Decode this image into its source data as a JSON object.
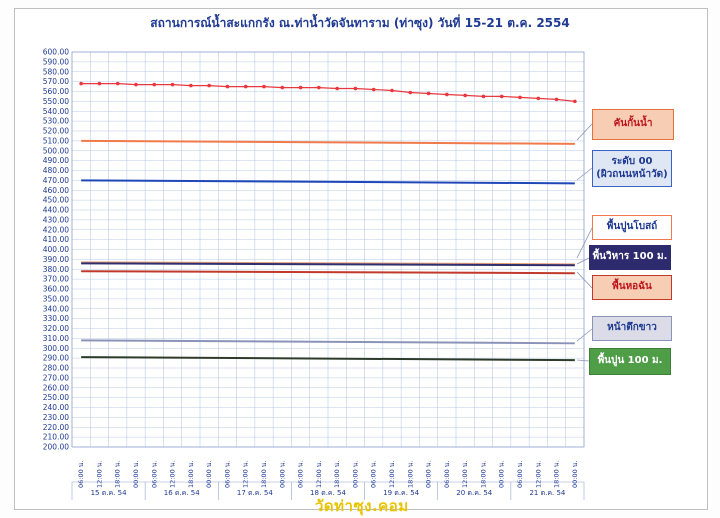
{
  "chart_data": {
    "type": "line",
    "title": "สถานการณ์น้ำสะแกกรัง ณ.ท่าน้ำวัดจันทาราม (ท่าซุง) วันที่ 15-21 ต.ค. 2554",
    "ylim": [
      200,
      600
    ],
    "ytick_step": 10,
    "grid": true,
    "x_ticks": [
      "06:00 น.",
      "12:00 น.",
      "18:00 น.",
      "00:00 น.",
      "06:00 น.",
      "12:00 น.",
      "18:00 น.",
      "00:00 น.",
      "06:00 น.",
      "12:00 น.",
      "18:00 น.",
      "00:00 น.",
      "06:00 น.",
      "12:00 น.",
      "18:00 น.",
      "00:00 น.",
      "06:00 น.",
      "12:00 น.",
      "18:00 น.",
      "00:00 น.",
      "06:00 น.",
      "12:00 น.",
      "18:00 น.",
      "00:00 น.",
      "06:00 น.",
      "12:00 น.",
      "18:00 น.",
      "00:00 น."
    ],
    "day_labels": [
      "15 ต.ค. 54",
      "16 ต.ค. 54",
      "17 ต.ค. 54",
      "18 ต.ค. 54",
      "19 ต.ค. 54",
      "20 ต.ค. 54",
      "21 ต.ค. 54"
    ],
    "water_level": [
      568,
      568,
      568,
      567,
      567,
      567,
      566,
      566,
      565,
      565,
      565,
      564,
      564,
      564,
      563,
      563,
      562,
      561,
      559,
      558,
      557,
      556,
      555,
      555,
      554,
      553,
      552,
      550
    ],
    "reference_lines": [
      {
        "name": "คันกั้นน้ำ",
        "start": 510,
        "end": 507,
        "color": "#f07a4a"
      },
      {
        "name": "ระดับ 00 (ผิวถนนหน้าวัด)",
        "start": 470,
        "end": 467,
        "color": "#1f47b8"
      },
      {
        "name": "พื้นปูนโบสถ์",
        "start": 387,
        "end": 385,
        "color": "#e8a07c"
      },
      {
        "name": "พื้นวิหาร 100 ม.",
        "start": 386,
        "end": 384,
        "color": "#2d2f6e"
      },
      {
        "name": "พื้นหอฉัน",
        "start": 378,
        "end": 376,
        "color": "#c0392b"
      },
      {
        "name": "หน้าตึกขาว",
        "start": 308,
        "end": 305,
        "color": "#8a93b8"
      },
      {
        "name": "พื้นปูน 100 ม.",
        "start": 291,
        "end": 288,
        "color": "#2f3b2a"
      }
    ],
    "line_color": "#e8383d"
  },
  "legend": [
    {
      "lines": [
        "คันกั้นน้ำ"
      ],
      "bg": "#f7cdb4",
      "border": "#e0733a",
      "color": "#c0141c"
    },
    {
      "lines": [
        "ระดับ 00",
        "(ผิวถนนหน้าวัด)"
      ],
      "bg": "#dfe7f5",
      "border": "#3a63c4",
      "color": "#1f3a93"
    },
    {
      "lines": [
        "พื้นปูนโบสถ์"
      ],
      "bg": "#ffffff",
      "border": "#f07a4a",
      "color": "#1f3a93"
    },
    {
      "lines": [
        "พื้นวิหาร 100 ม."
      ],
      "bg": "#2d2a6e",
      "border": "#2d2a6e",
      "color": "#ffffff"
    },
    {
      "lines": [
        "พื้นหอฉัน"
      ],
      "bg": "#f7cdb4",
      "border": "#c0392b",
      "color": "#c0141c"
    },
    {
      "lines": [
        "หน้าตึกขาว"
      ],
      "bg": "#dcdce8",
      "border": "#8a93b8",
      "color": "#1f3a93"
    },
    {
      "lines": [
        "พื้นปูน 100 ม."
      ],
      "bg": "#4f9e47",
      "border": "#3e7f37",
      "color": "#ffffff"
    }
  ],
  "watermark": "วัดท่าซุง.คอม"
}
